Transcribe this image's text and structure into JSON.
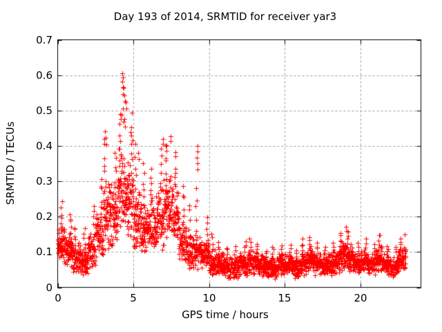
{
  "chart_data": {
    "type": "scatter",
    "title": "Day 193 of 2014, SRMTID for receiver yar3",
    "xlabel": "GPS time / hours",
    "ylabel": "SRMTID / TECUs",
    "xlim": [
      0,
      24
    ],
    "ylim": [
      0,
      0.7
    ],
    "xticks": [
      0,
      5,
      10,
      15,
      20
    ],
    "xtick_labels": [
      "0",
      "5",
      "10",
      "15",
      "20"
    ],
    "yticks": [
      0,
      0.1,
      0.2,
      0.3,
      0.4,
      0.5,
      0.6,
      0.7
    ],
    "ytick_labels": [
      "0",
      "0.1",
      "0.2",
      "0.3",
      "0.4",
      "0.5",
      "0.6",
      "0.7"
    ],
    "grid": true,
    "legend": "none",
    "marker": "plus",
    "marker_size_px": 7,
    "colors": {
      "points": "#ff0000",
      "axis": "#000000",
      "grid": "#9a9a9a",
      "background": "#ffffff",
      "text": "#000000"
    },
    "series": [
      {
        "name": "SRMTID",
        "encoding_note": "Dense 30s-sampled scatter; bins = [start_hour, count, band_low, band_high, band_max] per 0.5 h, values in TECUs read off the grid; peak_points are individually visible extreme markers.",
        "seed": 11,
        "density_profile": {
          "bin_hours": 0.5,
          "columns": [
            "start_hour",
            "count",
            "band_low",
            "band_high",
            "max"
          ],
          "bins": [
            [
              0.0,
              56,
              0.06,
              0.18,
              0.26
            ],
            [
              0.5,
              54,
              0.05,
              0.16,
              0.22
            ],
            [
              1.0,
              52,
              0.04,
              0.13,
              0.18
            ],
            [
              1.5,
              52,
              0.03,
              0.12,
              0.17
            ],
            [
              2.0,
              52,
              0.05,
              0.16,
              0.24
            ],
            [
              2.5,
              53,
              0.07,
              0.22,
              0.33
            ],
            [
              3.0,
              55,
              0.1,
              0.32,
              0.43
            ],
            [
              3.5,
              55,
              0.11,
              0.3,
              0.4
            ],
            [
              4.0,
              58,
              0.13,
              0.42,
              0.5
            ],
            [
              4.5,
              58,
              0.13,
              0.38,
              0.5
            ],
            [
              5.0,
              55,
              0.09,
              0.28,
              0.42
            ],
            [
              5.5,
              53,
              0.08,
              0.24,
              0.36
            ],
            [
              6.0,
              53,
              0.09,
              0.26,
              0.34
            ],
            [
              6.5,
              55,
              0.1,
              0.3,
              0.4
            ],
            [
              7.0,
              56,
              0.12,
              0.33,
              0.42
            ],
            [
              7.5,
              56,
              0.12,
              0.3,
              0.4
            ],
            [
              8.0,
              53,
              0.06,
              0.2,
              0.3
            ],
            [
              8.5,
              52,
              0.04,
              0.15,
              0.24
            ],
            [
              9.0,
              52,
              0.05,
              0.16,
              0.3
            ],
            [
              9.5,
              52,
              0.04,
              0.14,
              0.2
            ],
            [
              10.0,
              54,
              0.03,
              0.11,
              0.16
            ],
            [
              10.5,
              54,
              0.03,
              0.1,
              0.13
            ],
            [
              11.0,
              54,
              0.02,
              0.09,
              0.12
            ],
            [
              11.5,
              54,
              0.02,
              0.09,
              0.12
            ],
            [
              12.0,
              54,
              0.03,
              0.1,
              0.14
            ],
            [
              12.5,
              54,
              0.03,
              0.11,
              0.14
            ],
            [
              13.0,
              54,
              0.03,
              0.1,
              0.13
            ],
            [
              13.5,
              54,
              0.02,
              0.09,
              0.11
            ],
            [
              14.0,
              54,
              0.02,
              0.09,
              0.12
            ],
            [
              14.5,
              54,
              0.03,
              0.1,
              0.12
            ],
            [
              15.0,
              54,
              0.03,
              0.1,
              0.12
            ],
            [
              15.5,
              54,
              0.02,
              0.09,
              0.11
            ],
            [
              16.0,
              54,
              0.03,
              0.11,
              0.14
            ],
            [
              16.5,
              54,
              0.04,
              0.12,
              0.15
            ],
            [
              17.0,
              54,
              0.03,
              0.1,
              0.13
            ],
            [
              17.5,
              54,
              0.03,
              0.1,
              0.12
            ],
            [
              18.0,
              54,
              0.03,
              0.11,
              0.13
            ],
            [
              18.5,
              54,
              0.04,
              0.13,
              0.16
            ],
            [
              19.0,
              54,
              0.04,
              0.13,
              0.16
            ],
            [
              19.5,
              54,
              0.03,
              0.1,
              0.13
            ],
            [
              20.0,
              54,
              0.04,
              0.11,
              0.14
            ],
            [
              20.5,
              54,
              0.03,
              0.1,
              0.13
            ],
            [
              21.0,
              54,
              0.04,
              0.12,
              0.15
            ],
            [
              21.5,
              54,
              0.03,
              0.1,
              0.12
            ],
            [
              22.0,
              54,
              0.02,
              0.09,
              0.12
            ],
            [
              22.5,
              54,
              0.04,
              0.12,
              0.14
            ]
          ]
        },
        "peak_points": [
          [
            4.28,
            0.605
          ],
          [
            4.29,
            0.594
          ],
          [
            4.28,
            0.581
          ],
          [
            4.33,
            0.567
          ],
          [
            4.38,
            0.565
          ],
          [
            4.29,
            0.546
          ],
          [
            4.42,
            0.543
          ],
          [
            4.46,
            0.527
          ],
          [
            4.51,
            0.523
          ],
          [
            4.31,
            0.506
          ],
          [
            4.53,
            0.505
          ],
          [
            4.24,
            0.488
          ],
          [
            4.4,
            0.476
          ],
          [
            4.36,
            0.468
          ],
          [
            4.45,
            0.455
          ],
          [
            4.88,
            0.43
          ],
          [
            4.95,
            0.415
          ],
          [
            3.12,
            0.441
          ],
          [
            3.16,
            0.424
          ],
          [
            3.2,
            0.403
          ],
          [
            5.32,
            0.381
          ],
          [
            5.35,
            0.362
          ],
          [
            6.95,
            0.42
          ],
          [
            6.98,
            0.405
          ],
          [
            7.15,
            0.4
          ],
          [
            7.45,
            0.428
          ],
          [
            7.48,
            0.413
          ],
          [
            9.22,
            0.4
          ],
          [
            9.24,
            0.384
          ],
          [
            9.21,
            0.366
          ],
          [
            9.26,
            0.351
          ],
          [
            9.23,
            0.333
          ],
          [
            19.05,
            0.172
          ],
          [
            19.1,
            0.16
          ],
          [
            21.3,
            0.148
          ],
          [
            22.95,
            0.15
          ]
        ]
      }
    ]
  }
}
